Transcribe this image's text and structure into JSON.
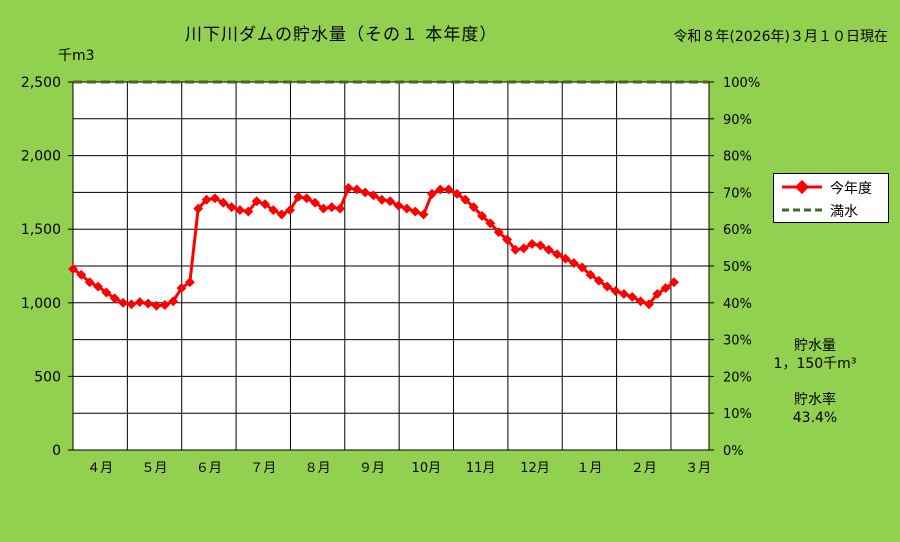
{
  "header": {
    "title": "川下川ダムの貯水量（その１ 本年度）",
    "date": "令和８年(2026年)３月１０日現在",
    "y_unit": "千m3"
  },
  "legend": {
    "current": "今年度",
    "full": "満水"
  },
  "info": {
    "storage_label": "貯水量",
    "storage_value": "1，150千m³",
    "rate_label": "貯水率",
    "rate_value": "43.4%"
  },
  "chart_data": {
    "type": "line",
    "title": "川下川ダムの貯水量（その１ 本年度）",
    "ylabel": "千m3",
    "y2label": "",
    "xlabel": "",
    "ylim": [
      0,
      2500
    ],
    "y2lim": [
      0,
      100
    ],
    "yticks": [
      {
        "value": 0,
        "label": "0"
      },
      {
        "value": 500,
        "label": "500"
      },
      {
        "value": 1000,
        "label": "1,000"
      },
      {
        "value": 1500,
        "label": "1,500"
      },
      {
        "value": 2000,
        "label": "2,000"
      },
      {
        "value": 2500,
        "label": "2,500"
      }
    ],
    "y2ticks": [
      "0%",
      "10%",
      "20%",
      "30%",
      "40%",
      "50%",
      "60%",
      "70%",
      "80%",
      "90%",
      "100%"
    ],
    "months": [
      "４月",
      "５月",
      "６月",
      "７月",
      "８月",
      "９月",
      "10月",
      "11月",
      "12月",
      "１月",
      "２月",
      "３月"
    ],
    "xlim_weeks": [
      0,
      52
    ],
    "grid": true,
    "legend_position": "right",
    "colors": {
      "current": "#ff0000",
      "full": "#4f6228",
      "background": "#92d050",
      "plot": "#ffffff"
    },
    "series": [
      {
        "name": "今年度",
        "values": [
          1230,
          1190,
          1140,
          1110,
          1070,
          1030,
          1000,
          990,
          1005,
          995,
          980,
          985,
          1010,
          1100,
          1140,
          1640,
          1700,
          1710,
          1680,
          1650,
          1630,
          1620,
          1690,
          1670,
          1630,
          1600,
          1630,
          1720,
          1710,
          1680,
          1640,
          1650,
          1640,
          1780,
          1770,
          1750,
          1730,
          1700,
          1690,
          1660,
          1640,
          1620,
          1600,
          1740,
          1770,
          1770,
          1740,
          1700,
          1650,
          1590,
          1540,
          1480,
          1430,
          1360,
          1370,
          1400,
          1390,
          1360,
          1330,
          1300,
          1270,
          1240,
          1190,
          1150,
          1110,
          1080,
          1060,
          1040,
          1010,
          990,
          1060,
          1100,
          1140
        ]
      },
      {
        "name": "満水",
        "value": 2500
      }
    ]
  }
}
